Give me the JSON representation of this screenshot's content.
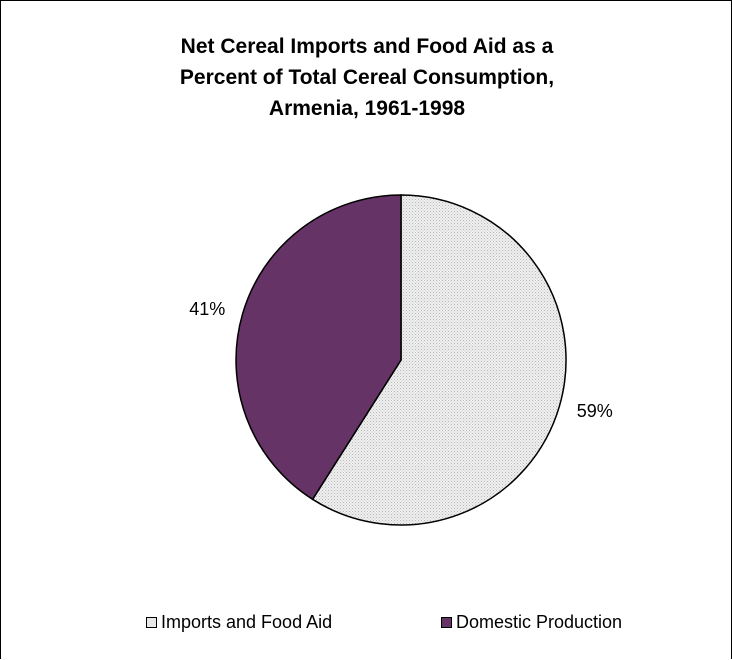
{
  "chart_data": {
    "type": "pie",
    "title": "Net Cereal Imports and Food Aid as a Percent of Total Cereal Consumption, Armenia, 1961-1998",
    "title_lines": [
      "Net Cereal Imports and Food Aid as a",
      "Percent of Total Cereal Consumption,",
      "Armenia, 1961-1998"
    ],
    "categories": [
      "Imports and Food Aid",
      "Domestic Production"
    ],
    "values": [
      59,
      41
    ],
    "labels": [
      "59%",
      "41%"
    ],
    "colors": [
      "#e8e8e8",
      "#663366"
    ],
    "legend_position": "bottom"
  }
}
